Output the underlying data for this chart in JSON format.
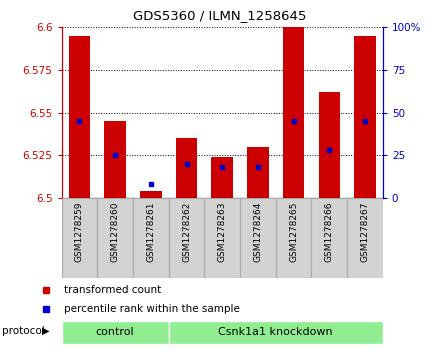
{
  "title": "GDS5360 / ILMN_1258645",
  "samples": [
    "GSM1278259",
    "GSM1278260",
    "GSM1278261",
    "GSM1278262",
    "GSM1278263",
    "GSM1278264",
    "GSM1278265",
    "GSM1278266",
    "GSM1278267"
  ],
  "transformed_counts": [
    6.595,
    6.545,
    6.504,
    6.535,
    6.524,
    6.53,
    6.6,
    6.562,
    6.595
  ],
  "percentile_ranks": [
    45,
    25,
    8,
    20,
    18,
    18,
    45,
    28,
    45
  ],
  "ylim_left": [
    6.5,
    6.6
  ],
  "ylim_right": [
    0,
    100
  ],
  "yticks_left": [
    6.5,
    6.525,
    6.55,
    6.575,
    6.6
  ],
  "yticks_right": [
    0,
    25,
    50,
    75,
    100
  ],
  "bar_color": "#cc0000",
  "dot_color": "#0000cc",
  "bar_width": 0.6,
  "base_value": 6.5,
  "ctrl_count": 3,
  "ctrl_label": "control",
  "csnk_label": "Csnk1a1 knockdown",
  "group_color": "#90ee90",
  "protocol_label": "protocol",
  "legend_items": [
    {
      "label": "transformed count",
      "color": "#cc0000"
    },
    {
      "label": "percentile rank within the sample",
      "color": "#0000cc"
    }
  ],
  "tick_label_color_left": "#cc0000",
  "tick_label_color_right": "#0000cc",
  "sample_box_color": "#d3d3d3",
  "sample_box_edge": "#aaaaaa"
}
